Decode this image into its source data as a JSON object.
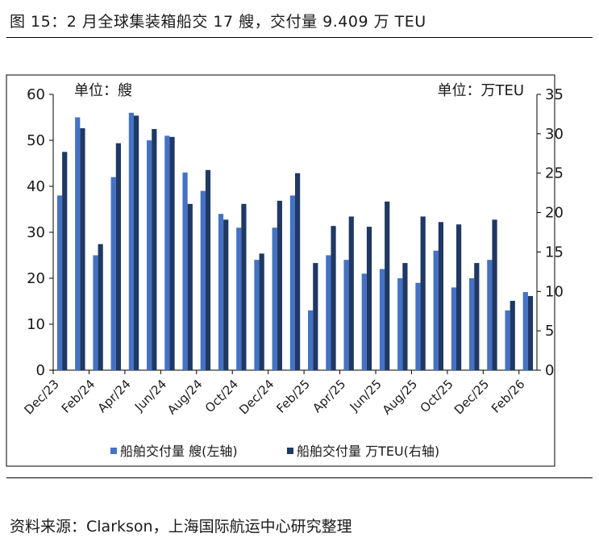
{
  "title": "图 15：2 月全球集装箱船交 17 艘，交付量 9.409 万 TEU",
  "source": "资料来源：Clarkson，上海国际航运中心研究整理",
  "chart_data": {
    "type": "bar",
    "left_unit": "单位：艘",
    "right_unit": "单位：万TEU",
    "x_ticks": [
      "Dec/23",
      "Feb/24",
      "Apr/24",
      "Jun/24",
      "Aug/24",
      "Oct/24",
      "Dec/24",
      "Feb/25",
      "Apr/25",
      "Jun/25",
      "Aug/25",
      "Oct/25",
      "Dec/25",
      "Feb/26"
    ],
    "categories": [
      "Dec/23",
      "Jan/24",
      "Feb/24",
      "Mar/24",
      "Apr/24",
      "May/24",
      "Jun/24",
      "Jul/24",
      "Aug/24",
      "Sep/24",
      "Oct/24",
      "Nov/24",
      "Dec/24",
      "Jan/25",
      "Feb/25",
      "Mar/25",
      "Apr/25",
      "May/25",
      "Jun/25",
      "Jul/25",
      "Aug/25",
      "Sep/25",
      "Oct/25",
      "Nov/25",
      "Dec/25",
      "Jan/26",
      "Feb/26"
    ],
    "ylim_left": [
      0,
      60
    ],
    "yticks_left": [
      0,
      10,
      20,
      30,
      40,
      50,
      60
    ],
    "ylim_right": [
      0,
      35
    ],
    "yticks_right": [
      0,
      5,
      10,
      15,
      20,
      25,
      30,
      35
    ],
    "legend_position": "bottom",
    "grid": false,
    "series": [
      {
        "name": "船舶交付量 艘(左轴)",
        "axis": "left",
        "color": "#4472c4",
        "values": [
          38,
          55,
          25,
          42,
          56,
          50,
          51,
          43,
          39,
          34,
          31,
          24,
          31,
          38,
          13,
          25,
          24,
          21,
          22,
          20,
          19,
          26,
          18,
          20,
          24,
          13,
          17
        ]
      },
      {
        "name": "船舶交付量 万TEU(右轴)",
        "axis": "right",
        "color": "#1f3864",
        "values": [
          27.7,
          30.7,
          16.0,
          28.8,
          32.3,
          30.6,
          29.6,
          21.1,
          25.4,
          19.1,
          21.1,
          14.8,
          21.5,
          25.0,
          13.6,
          18.3,
          19.5,
          18.2,
          21.4,
          13.6,
          19.5,
          18.8,
          18.5,
          13.6,
          19.1,
          8.8,
          9.409
        ]
      }
    ]
  }
}
